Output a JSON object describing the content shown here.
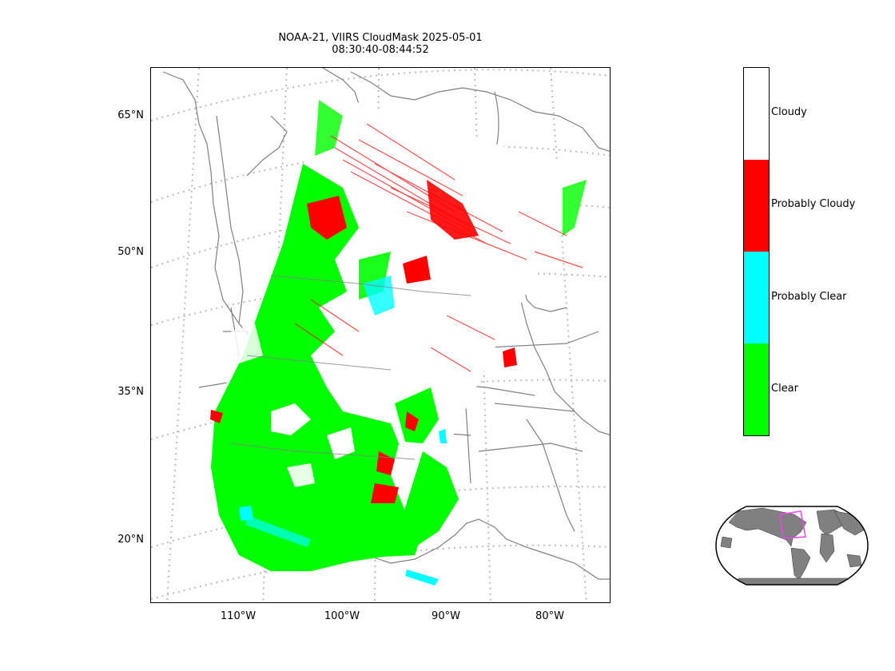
{
  "title": {
    "line1": "NOAA-21, VIIRS CloudMask 2025-05-01",
    "line2": "08:30:40-08:44:52"
  },
  "map": {
    "projection": "lambert-conformal",
    "latitude_labels": [
      "65°N",
      "50°N",
      "35°N",
      "20°N"
    ],
    "longitude_labels": [
      "110°W",
      "100°W",
      "90°W",
      "80°W"
    ],
    "graticule_style": "dotted-gray",
    "coastline_color": "#808080"
  },
  "colorbar": {
    "classes": [
      {
        "label": "Cloudy",
        "color": "#ffffff"
      },
      {
        "label": "Probably Cloudy",
        "color": "#ff0000"
      },
      {
        "label": "Probably Clear",
        "color": "#00ffff"
      },
      {
        "label": "Clear",
        "color": "#00ff00"
      }
    ]
  },
  "inset": {
    "description_icon": "world-globe-icon",
    "land_color": "#808080",
    "highlight_color": "#ee44ee"
  }
}
